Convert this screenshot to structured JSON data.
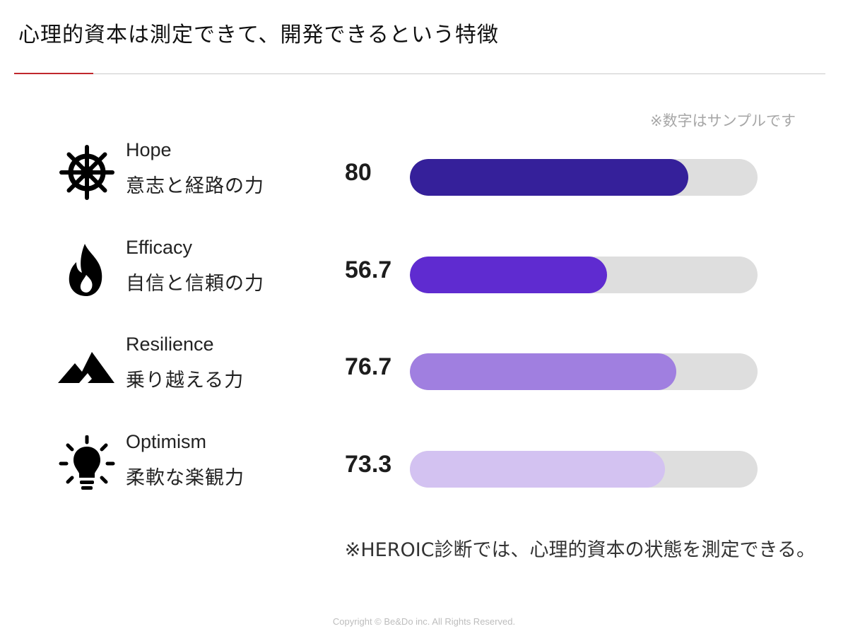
{
  "title": "心理的資本は測定できて、開発できるという特徴",
  "sample_note": "※数字はサンプルです",
  "metrics": [
    {
      "name": "Hope",
      "desc": "意志と経路の力",
      "value": "80",
      "fraction": 0.8,
      "color": "#35209a",
      "icon": "ship-wheel-icon"
    },
    {
      "name": "Efficacy",
      "desc": "自信と信頼の力",
      "value": "56.7",
      "fraction": 0.567,
      "color": "#5f2bd0",
      "icon": "flame-icon"
    },
    {
      "name": "Resilience",
      "desc": "乗り越える力",
      "value": "76.7",
      "fraction": 0.767,
      "color": "#a07fe0",
      "icon": "mountain-icon"
    },
    {
      "name": "Optimism",
      "desc": "柔軟な楽観力",
      "value": "73.3",
      "fraction": 0.733,
      "color": "#d3c2f1",
      "icon": "lightbulb-icon"
    }
  ],
  "footnote": "※HEROIC診断では、心理的資本の状態を測定できる。",
  "copyright": "Copyright © Be&Do inc. All Rights Reserved."
}
